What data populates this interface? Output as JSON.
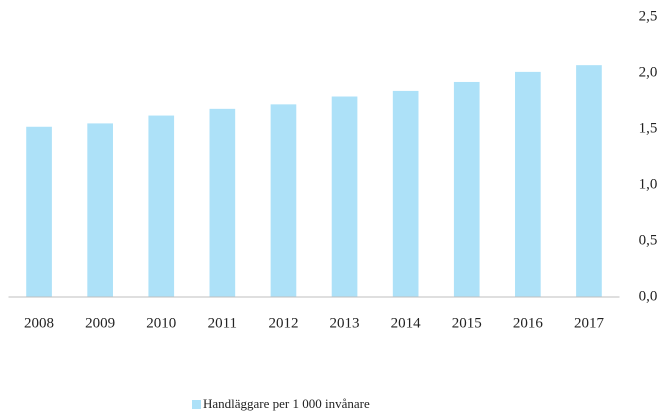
{
  "chart_data": {
    "type": "bar",
    "categories": [
      "2008",
      "2009",
      "2010",
      "2011",
      "2012",
      "2013",
      "2014",
      "2015",
      "2016",
      "2017"
    ],
    "series": [
      {
        "name": "Handläggare per 1 000 invånare",
        "color": "#ade1f8",
        "values": [
          1.52,
          1.55,
          1.62,
          1.68,
          1.72,
          1.79,
          1.84,
          1.92,
          2.01,
          2.07
        ]
      }
    ],
    "ylim": [
      0,
      2.5
    ],
    "yticks": [
      {
        "value": 0,
        "label": "0,0"
      },
      {
        "value": 0.5,
        "label": "0,5"
      },
      {
        "value": 1,
        "label": "1,0"
      },
      {
        "value": 1.5,
        "label": "1,5"
      },
      {
        "value": 2,
        "label": "2,0"
      },
      {
        "value": 2.5,
        "label": "2,5"
      }
    ],
    "grid": false,
    "legend": "bottom"
  }
}
